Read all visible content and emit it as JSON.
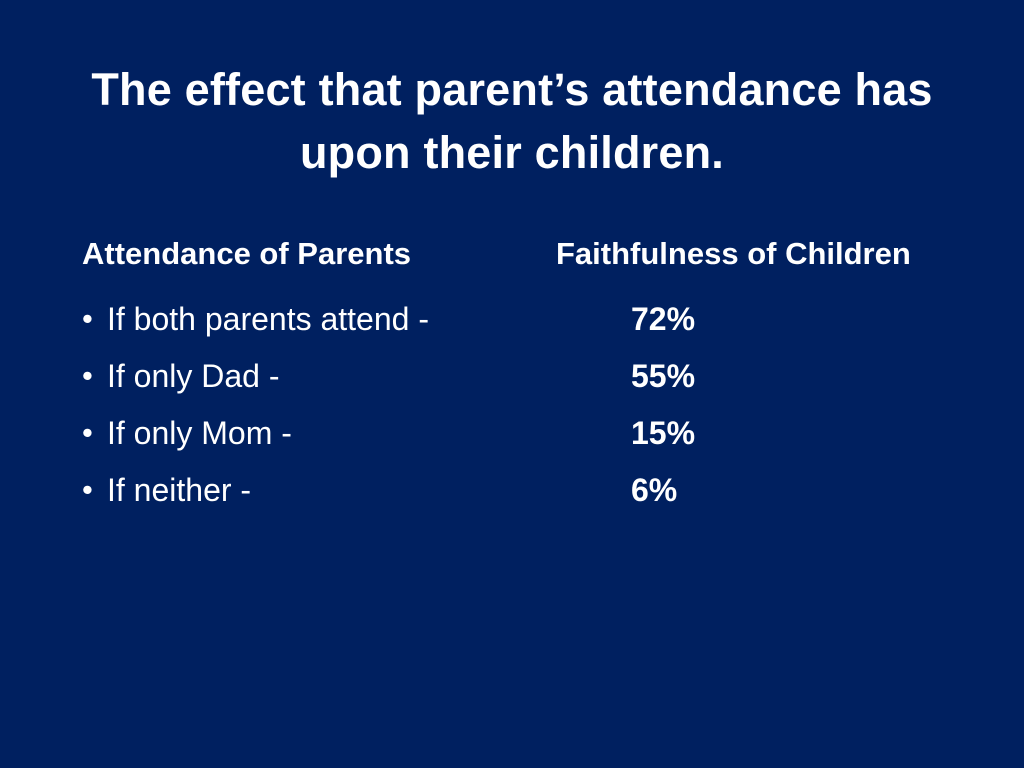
{
  "slide": {
    "title": "The effect that parent’s attendance has upon their children.",
    "background_color": "#002060",
    "text_color": "#FFFFFF"
  },
  "columns": {
    "left_header": "Attendance of Parents",
    "right_header": "Faithfulness of Children"
  },
  "rows": [
    {
      "bullet": "•",
      "label": "If both parents attend -",
      "value": "72%"
    },
    {
      "bullet": "•",
      "label": "If only Dad -",
      "value": "55%"
    },
    {
      "bullet": "•",
      "label": "If only Mom -",
      "value": "15%"
    },
    {
      "bullet": "•",
      "label": "If neither -",
      "value": "6%"
    }
  ]
}
